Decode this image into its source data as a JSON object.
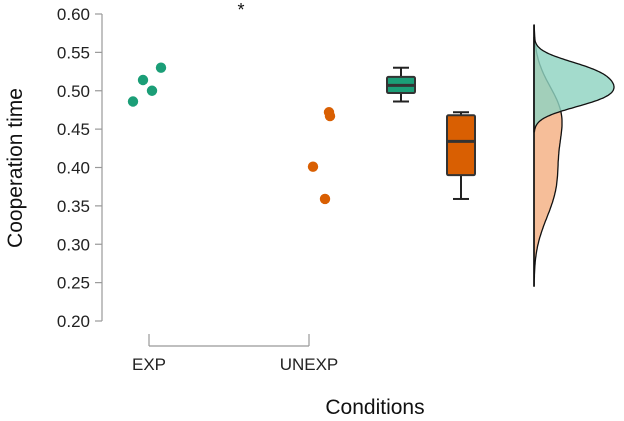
{
  "chart_data": {
    "type": "scatter",
    "title": "",
    "xlabel": "Conditions",
    "ylabel": "Cooperation time",
    "ylim": [
      0.2,
      0.6
    ],
    "yticks": [
      "0.60",
      "0.55",
      "0.50",
      "0.45",
      "0.40",
      "0.35",
      "0.30",
      "0.25",
      "0.20"
    ],
    "categories": [
      "EXP",
      "UNEXP"
    ],
    "annotation": "*",
    "series": [
      {
        "category": "EXP",
        "color": "#1b9e77",
        "box_color": "#1b9e77",
        "density_color": "#8fd3c1",
        "points": [
          0.486,
          0.514,
          0.5,
          0.53
        ],
        "box": {
          "min": 0.486,
          "q1": 0.497,
          "median": 0.507,
          "q3": 0.518,
          "max": 0.53
        }
      },
      {
        "category": "UNEXP",
        "color": "#d95f02",
        "box_color": "#d95f02",
        "density_color": "#f4b083",
        "points": [
          0.401,
          0.359,
          0.467,
          0.472
        ],
        "box": {
          "min": 0.359,
          "q1": 0.39,
          "median": 0.434,
          "q3": 0.468,
          "max": 0.472
        }
      }
    ],
    "grid": false,
    "legend": "none"
  }
}
